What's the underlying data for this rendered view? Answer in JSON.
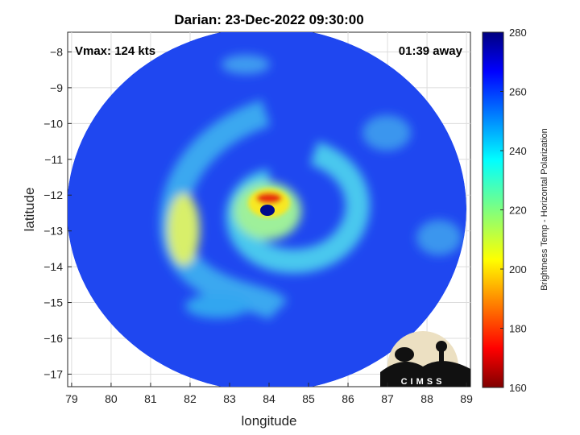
{
  "chart_data": {
    "type": "heatmap",
    "title": "Darian: 23-Dec-2022 09:30:00",
    "xlabel": "longitude",
    "ylabel": "latitude",
    "xlim": [
      78.9,
      89.1
    ],
    "ylim": [
      -17.35,
      -7.45
    ],
    "xticks": [
      79,
      80,
      81,
      82,
      83,
      84,
      85,
      86,
      87,
      88,
      89
    ],
    "yticks": [
      -8,
      -9,
      -10,
      -11,
      -12,
      -13,
      -14,
      -15,
      -16,
      -17
    ],
    "grid": true,
    "annotations": {
      "vmax": "Vmax: 124 kts",
      "time_away": "01:39 away"
    },
    "colorbar": {
      "label": "Brightness Temp - Horizontal Polarization",
      "range": [
        160,
        280
      ],
      "ticks": [
        160,
        180,
        200,
        220,
        240,
        260,
        280
      ],
      "colormap": "jet"
    },
    "storm": {
      "eye_center": [
        83.95,
        -12.35
      ],
      "swath_center": [
        83.95,
        -12.25
      ],
      "background_brightness_temp": 262
    },
    "logo": {
      "text": "CIMSS"
    }
  }
}
